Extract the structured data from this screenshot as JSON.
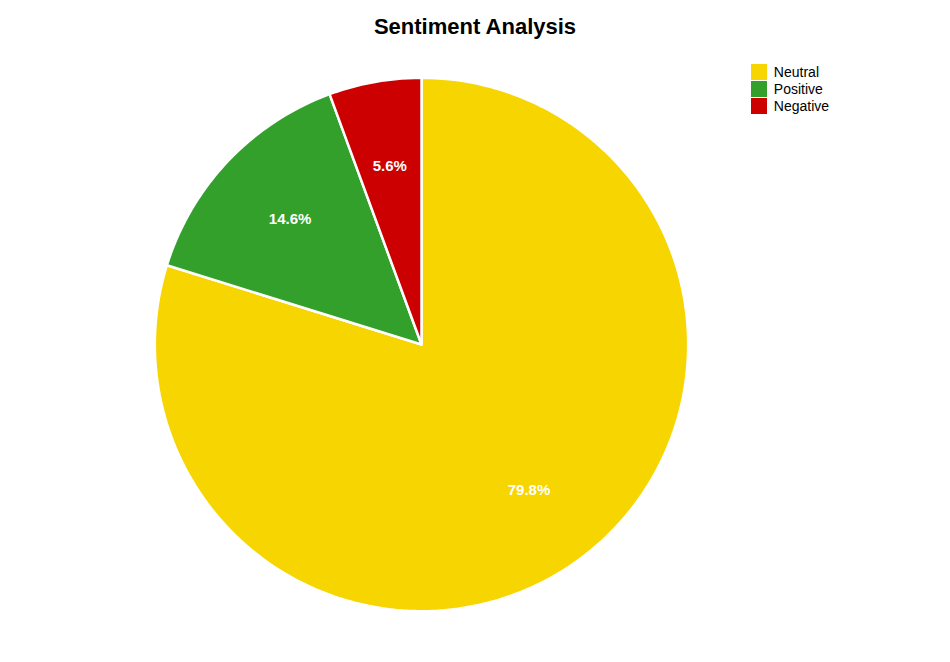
{
  "chart_data": {
    "type": "pie",
    "title": "Sentiment Analysis",
    "categories": [
      "Neutral",
      "Positive",
      "Negative"
    ],
    "values": [
      79.8,
      14.6,
      5.6
    ],
    "value_labels": [
      "79.8%",
      "14.6%",
      "5.6%"
    ],
    "colors": [
      "#f7d500",
      "#33a02c",
      "#cc0000"
    ],
    "data_labels": true,
    "legend": "upper right"
  }
}
